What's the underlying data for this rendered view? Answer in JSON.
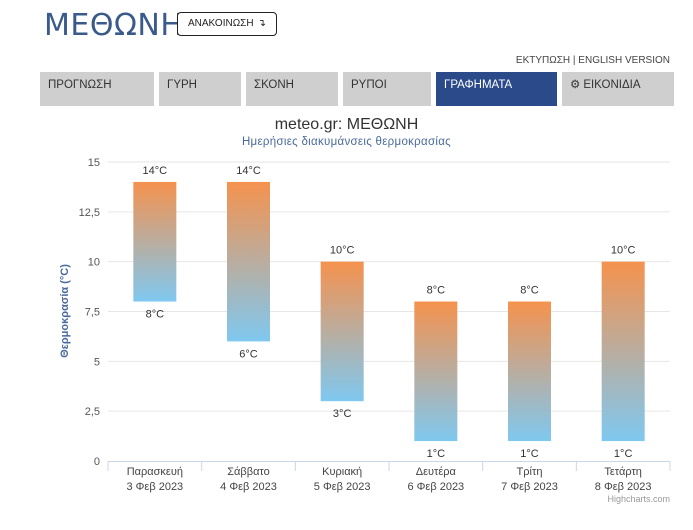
{
  "header": {
    "title": "ΜΕΘΩΝΗ",
    "announce_label": "ΑΝΑΚΟΙΝΩΣΗ",
    "announce_icon": "arrow-return-icon"
  },
  "top_links": {
    "print": "ΕΚΤΥΠΩΣΗ",
    "separator": "|",
    "english": "ENGLISH VERSION"
  },
  "tabs": [
    {
      "label": "ΠΡΟΓΝΩΣΗ",
      "active": false
    },
    {
      "label": "ΓΥΡΗ",
      "active": false
    },
    {
      "label": "ΣΚΟΝΗ",
      "active": false
    },
    {
      "label": "ΡΥΠΟΙ",
      "active": false
    },
    {
      "label": "ΓΡΑΦΗΜΑΤΑ",
      "active": true
    },
    {
      "label": "ΕΙΚΟΝΙΔΙΑ",
      "active": false,
      "icon": "gear-icon"
    }
  ],
  "colors": {
    "tab_bg": "#cfcfcf",
    "tab_active_bg": "#2a4a8a",
    "bar_top": "#f5924e",
    "bar_bottom": "#7fc8f0",
    "title_blue": "#3a5a8c"
  },
  "chart_data": {
    "type": "columnrange",
    "title": "meteo.gr: ΜΕΘΩΝΗ",
    "subtitle": "Ημερήσιες διακυμάνσεις θερμοκρασίας",
    "ylabel": "Θερμοκρασία (°C)",
    "ylim": [
      0,
      15
    ],
    "yticks": [
      "0",
      "2,5",
      "5",
      "7,5",
      "10",
      "12,5",
      "15"
    ],
    "ytick_values": [
      0,
      2.5,
      5,
      7.5,
      10,
      12.5,
      15
    ],
    "grid": true,
    "categories": [
      [
        "Παρασκευή",
        "3 Φεβ 2023"
      ],
      [
        "Σάββατο",
        "4 Φεβ 2023"
      ],
      [
        "Κυριακή",
        "5 Φεβ 2023"
      ],
      [
        "Δευτέρα",
        "6 Φεβ 2023"
      ],
      [
        "Τρίτη",
        "7 Φεβ 2023"
      ],
      [
        "Τετάρτη",
        "8 Φεβ 2023"
      ]
    ],
    "series": [
      {
        "low": [
          8,
          6,
          3,
          1,
          1,
          1
        ],
        "high": [
          14,
          14,
          10,
          8,
          8,
          10
        ],
        "low_labels": [
          "8°C",
          "6°C",
          "3°C",
          "1°C",
          "1°C",
          "1°C"
        ],
        "high_labels": [
          "14°C",
          "14°C",
          "10°C",
          "8°C",
          "8°C",
          "10°C"
        ]
      }
    ]
  },
  "credits": "Highcharts.com"
}
